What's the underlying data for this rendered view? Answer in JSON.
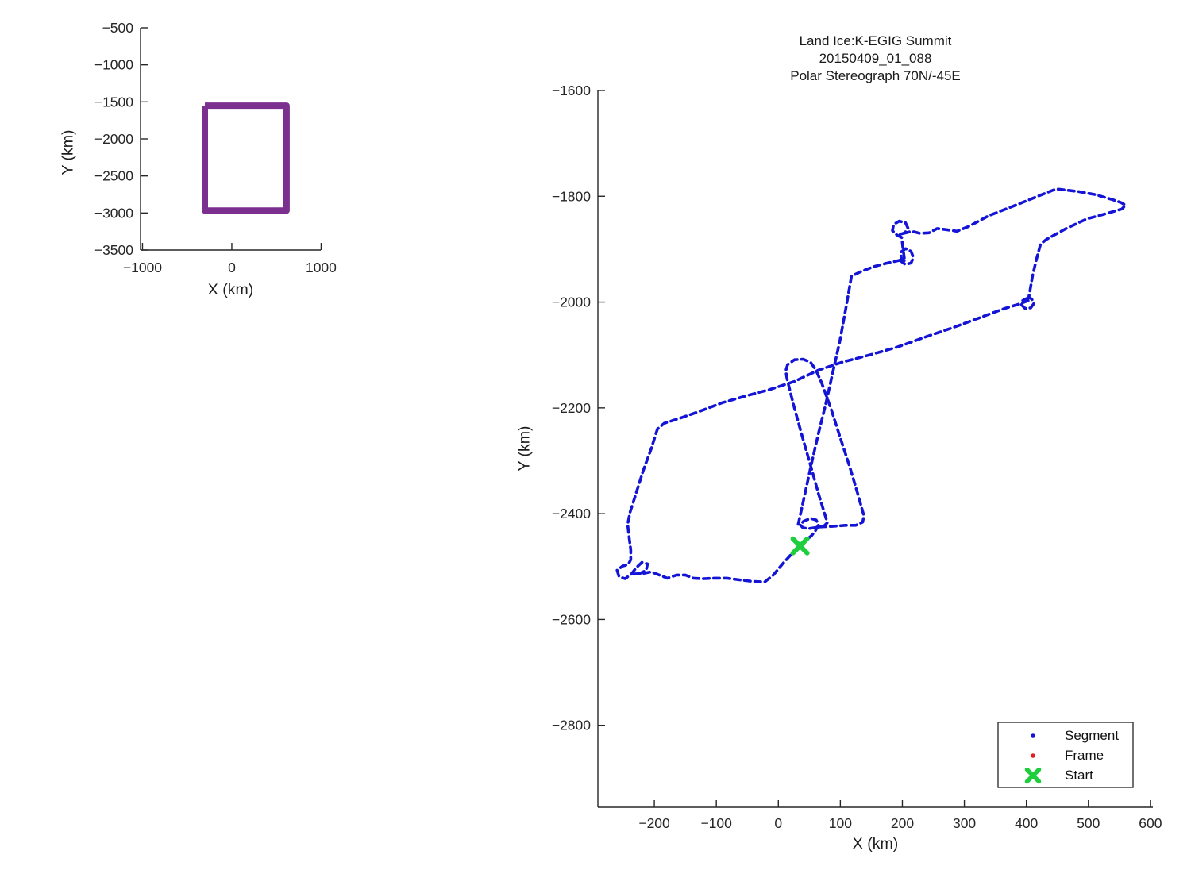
{
  "figure": {
    "background": "#ffffff",
    "axis_color": "#262626",
    "tick_label_color": "#262626"
  },
  "chart_data": [
    {
      "id": "overview",
      "type": "line",
      "title": "",
      "xlabel": "X (km)",
      "ylabel": "Y (km)",
      "xlim": [
        -1022,
        996
      ],
      "ylim": [
        -500,
        -3500
      ],
      "xticks": [
        -1000,
        0,
        1000
      ],
      "yticks": [
        -500,
        -1000,
        -1500,
        -2000,
        -2500,
        -3000,
        -3500
      ],
      "grid": false,
      "series": [
        {
          "name": "coverage-rectangle",
          "color": "#7b2f8e",
          "linewidth": 8,
          "dashed": false,
          "points": [
            [
              -302,
              -1551
            ],
            [
              613,
              -1551
            ],
            [
              613,
              -2968
            ],
            [
              -302,
              -2968
            ],
            [
              -302,
              -1551
            ]
          ]
        }
      ]
    },
    {
      "id": "flight-track",
      "type": "line",
      "title_lines": [
        "Land Ice:K-EGIG Summit",
        "20150409_01_088",
        "Polar Stereograph 70N/-45E"
      ],
      "xlabel": "X (km)",
      "ylabel": "Y (km)",
      "xlim": [
        -291,
        604
      ],
      "ylim": [
        -1600,
        -2955
      ],
      "xticks": [
        -200,
        -100,
        0,
        100,
        200,
        300,
        400,
        500,
        600
      ],
      "yticks": [
        -1600,
        -1800,
        -2000,
        -2200,
        -2400,
        -2600,
        -2800
      ],
      "grid": false,
      "series": [
        {
          "name": "segment-transit-leg",
          "color": "#1414d6",
          "linewidth": 3.6,
          "dashed": true,
          "points": [
            [
              32,
              -2420
            ],
            [
              42,
              -2367
            ],
            [
              54,
              -2303
            ],
            [
              65,
              -2247
            ],
            [
              77,
              -2190
            ],
            [
              88,
              -2132
            ],
            [
              99,
              -2075
            ],
            [
              109,
              -2011
            ],
            [
              118,
              -1951
            ],
            [
              134,
              -1942
            ],
            [
              154,
              -1933
            ],
            [
              173,
              -1927
            ],
            [
              196,
              -1921
            ]
          ]
        },
        {
          "name": "segment-main-tour",
          "color": "#1414d6",
          "linewidth": 3.6,
          "dashed": true,
          "points": [
            [
              196,
              -1921
            ],
            [
              205,
              -1929
            ],
            [
              214,
              -1926
            ],
            [
              218,
              -1916
            ],
            [
              214,
              -1904
            ],
            [
              205,
              -1899
            ],
            [
              198,
              -1905
            ],
            [
              198,
              -1916
            ],
            [
              204,
              -1923
            ],
            [
              201,
              -1900
            ],
            [
              199,
              -1878
            ],
            [
              191,
              -1873
            ],
            [
              184,
              -1865
            ],
            [
              186,
              -1853
            ],
            [
              195,
              -1847
            ],
            [
              205,
              -1850
            ],
            [
              209,
              -1860
            ],
            [
              204,
              -1869
            ],
            [
              196,
              -1872
            ],
            [
              209,
              -1868
            ],
            [
              215,
              -1866
            ],
            [
              228,
              -1870
            ],
            [
              243,
              -1869
            ],
            [
              256,
              -1861
            ],
            [
              271,
              -1863
            ],
            [
              288,
              -1866
            ],
            [
              307,
              -1857
            ],
            [
              339,
              -1837
            ],
            [
              378,
              -1819
            ],
            [
              416,
              -1801
            ],
            [
              448,
              -1786
            ],
            [
              484,
              -1791
            ],
            [
              512,
              -1797
            ],
            [
              538,
              -1806
            ],
            [
              553,
              -1812
            ],
            [
              560,
              -1817
            ],
            [
              554,
              -1824
            ],
            [
              528,
              -1833
            ],
            [
              497,
              -1843
            ],
            [
              464,
              -1861
            ],
            [
              433,
              -1881
            ],
            [
              423,
              -1890
            ],
            [
              416,
              -1920
            ],
            [
              410,
              -1950
            ],
            [
              406,
              -1977
            ],
            [
              404,
              -1990
            ],
            [
              409,
              -1995
            ],
            [
              412,
              -2003
            ],
            [
              407,
              -2011
            ],
            [
              398,
              -2012
            ],
            [
              392,
              -2005
            ],
            [
              394,
              -1997
            ],
            [
              401,
              -1993
            ],
            [
              406,
              -1996
            ],
            [
              385,
              -2005
            ],
            [
              365,
              -2012
            ],
            [
              326,
              -2029
            ],
            [
              282,
              -2048
            ],
            [
              237,
              -2066
            ],
            [
              192,
              -2085
            ],
            [
              147,
              -2100
            ],
            [
              102,
              -2114
            ],
            [
              64,
              -2129
            ],
            [
              26,
              -2150
            ],
            [
              -13,
              -2165
            ],
            [
              -51,
              -2177
            ],
            [
              -90,
              -2190
            ],
            [
              -128,
              -2207
            ],
            [
              -160,
              -2220
            ],
            [
              -184,
              -2229
            ],
            [
              -195,
              -2240
            ],
            [
              -205,
              -2277
            ],
            [
              -218,
              -2319
            ],
            [
              -229,
              -2360
            ],
            [
              -239,
              -2397
            ],
            [
              -243,
              -2420
            ],
            [
              -241,
              -2442
            ],
            [
              -238,
              -2468
            ],
            [
              -238,
              -2487
            ],
            [
              -242,
              -2496
            ],
            [
              -251,
              -2499
            ],
            [
              -260,
              -2507
            ],
            [
              -257,
              -2519
            ],
            [
              -247,
              -2523
            ],
            [
              -237,
              -2514
            ],
            [
              -229,
              -2502
            ],
            [
              -220,
              -2492
            ],
            [
              -211,
              -2495
            ],
            [
              -213,
              -2507
            ],
            [
              -223,
              -2513
            ],
            [
              -233,
              -2514
            ],
            [
              -218,
              -2513
            ],
            [
              -205,
              -2510
            ],
            [
              -192,
              -2516
            ],
            [
              -179,
              -2522
            ],
            [
              -164,
              -2516
            ],
            [
              -150,
              -2516
            ],
            [
              -137,
              -2522
            ],
            [
              -122,
              -2523
            ],
            [
              -102,
              -2522
            ],
            [
              -83,
              -2522
            ],
            [
              -64,
              -2525
            ],
            [
              -42,
              -2528
            ],
            [
              -22,
              -2529
            ],
            [
              -8,
              -2516
            ],
            [
              6,
              -2496
            ],
            [
              20,
              -2478
            ],
            [
              33,
              -2463
            ],
            [
              45,
              -2450
            ],
            [
              54,
              -2441
            ],
            [
              60,
              -2432
            ],
            [
              65,
              -2421
            ],
            [
              61,
              -2412
            ],
            [
              52,
              -2409
            ],
            [
              41,
              -2414
            ],
            [
              35,
              -2421
            ],
            [
              40,
              -2427
            ],
            [
              50,
              -2428
            ],
            [
              67,
              -2425
            ],
            [
              87,
              -2424
            ],
            [
              108,
              -2422
            ],
            [
              125,
              -2422
            ],
            [
              136,
              -2416
            ],
            [
              138,
              -2404
            ],
            [
              128,
              -2362
            ],
            [
              115,
              -2311
            ],
            [
              100,
              -2257
            ],
            [
              85,
              -2202
            ],
            [
              70,
              -2153
            ],
            [
              60,
              -2127
            ],
            [
              52,
              -2114
            ],
            [
              40,
              -2108
            ],
            [
              26,
              -2109
            ],
            [
              15,
              -2118
            ],
            [
              12,
              -2130
            ],
            [
              14,
              -2145
            ],
            [
              24,
              -2192
            ],
            [
              38,
              -2252
            ],
            [
              52,
              -2309
            ],
            [
              65,
              -2363
            ],
            [
              76,
              -2405
            ],
            [
              79,
              -2417
            ],
            [
              73,
              -2424
            ],
            [
              60,
              -2427
            ]
          ]
        }
      ],
      "markers": [
        {
          "name": "Start",
          "x": 35,
          "y": -2461,
          "marker": "x",
          "color": "#1fce3e",
          "size": 18,
          "linewidth": 6
        }
      ],
      "legend": {
        "position": "southeast",
        "border_color": "#333333",
        "background": "#ffffff",
        "entries": [
          {
            "label": "Segment",
            "marker": "dot",
            "color": "#1414d6"
          },
          {
            "label": "Frame",
            "marker": "dot",
            "color": "#e02020"
          },
          {
            "label": "Start",
            "marker": "x",
            "color": "#1fce3e"
          }
        ]
      }
    }
  ]
}
